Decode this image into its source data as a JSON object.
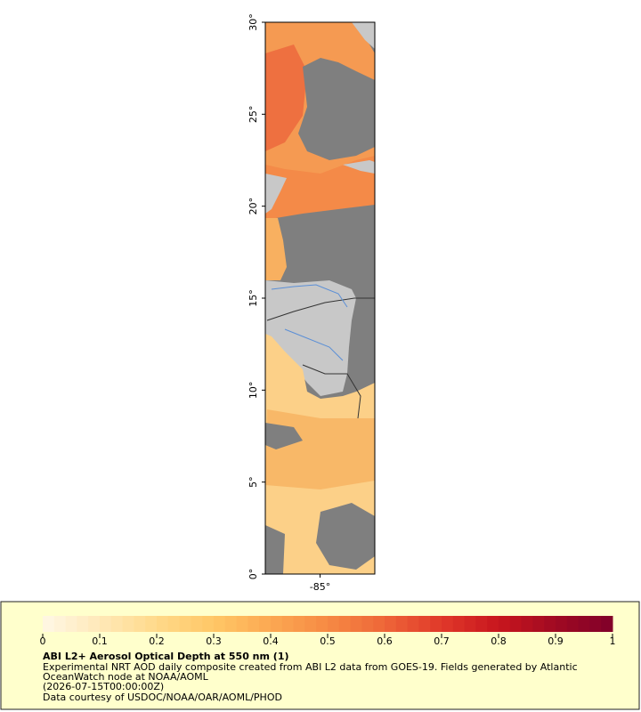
{
  "map": {
    "lat_range": [
      0,
      30
    ],
    "lon_range": [
      -88,
      -82
    ],
    "lat_ticks": [
      {
        "value": 0,
        "label": "0°"
      },
      {
        "value": 5,
        "label": "5°"
      },
      {
        "value": 10,
        "label": "10°"
      },
      {
        "value": 15,
        "label": "15°"
      },
      {
        "value": 20,
        "label": "20°"
      },
      {
        "value": 25,
        "label": "25°"
      },
      {
        "value": 30,
        "label": "30°"
      }
    ],
    "lon_ticks": [
      {
        "value": -85,
        "label": "-85°"
      }
    ]
  },
  "legend": {
    "range": [
      0,
      1
    ],
    "ticks": [
      0,
      0.1,
      0.2,
      0.3,
      0.4,
      0.5,
      0.6,
      0.7,
      0.8,
      0.9,
      1
    ],
    "colors": [
      "#fff7e6",
      "#ffe9b8",
      "#ffd98a",
      "#ffc766",
      "#fca852",
      "#f68a44",
      "#ee6638",
      "#e0382a",
      "#c8161e",
      "#a00a22",
      "#80002a"
    ],
    "title": "ABI L2+ Aerosol Optical Depth at 550 nm (1)",
    "lines": [
      "Experimental NRT AOD daily composite created from ABI L2 data from GOES-19. Fields generated by Atlantic",
      "OceanWatch node at NOAA/AOML",
      "(2026-07-15T00:00:00Z)",
      "Data courtesy of USDOC/NOAA/OAR/AOML/PHOD"
    ]
  }
}
